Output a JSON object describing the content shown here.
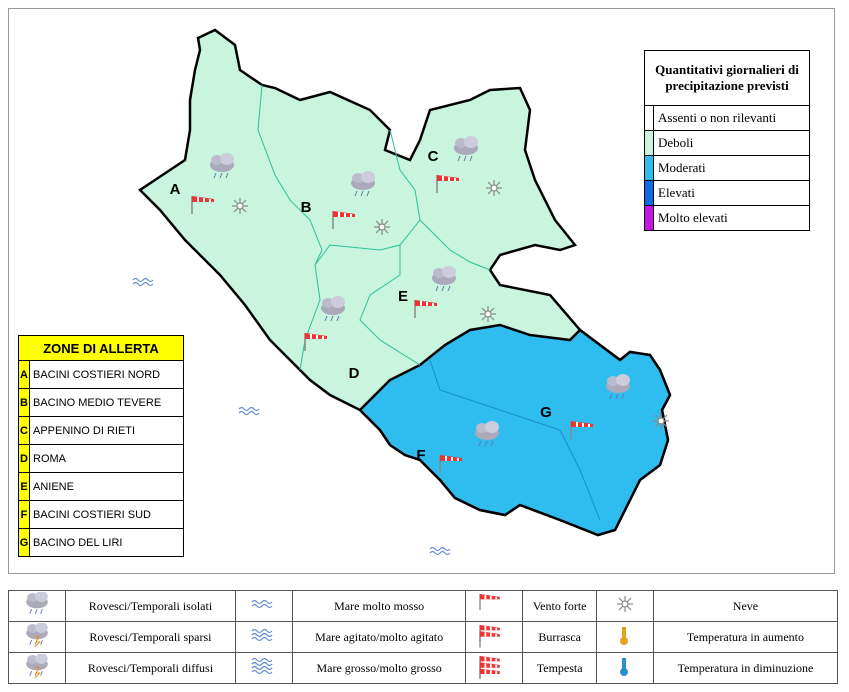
{
  "map": {
    "zone_labels": [
      "A",
      "B",
      "C",
      "D",
      "E",
      "F",
      "G"
    ]
  },
  "precipitation_legend": {
    "title": "Quantitativi giornalieri di precipitazione previsti",
    "rows": [
      {
        "label": "Assenti o non rilevanti",
        "color": "#ffffff"
      },
      {
        "label": "Deboli",
        "color": "#c9f4de"
      },
      {
        "label": "Moderati",
        "color": "#2fbdf0"
      },
      {
        "label": "Elevati",
        "color": "#0a6ee8"
      },
      {
        "label": "Molto elevati",
        "color": "#c814e8"
      }
    ]
  },
  "alert_zones": {
    "title": "ZONE DI ALLERTA",
    "rows": [
      {
        "code": "A",
        "name": "BACINI COSTIERI NORD"
      },
      {
        "code": "B",
        "name": "BACINO MEDIO TEVERE"
      },
      {
        "code": "C",
        "name": "APPENINO DI RIETI"
      },
      {
        "code": "D",
        "name": "ROMA"
      },
      {
        "code": "E",
        "name": "ANIENE"
      },
      {
        "code": "F",
        "name": "BACINI COSTIERI SUD"
      },
      {
        "code": "G",
        "name": "BACINO DEL LIRI"
      }
    ]
  },
  "symbol_legend": {
    "rows": [
      [
        "Rovesci/Temporali isolati",
        "Mare molto mosso",
        "Vento forte",
        "Neve"
      ],
      [
        "Rovesci/Temporali sparsi",
        "Mare agitato/molto agitato",
        "Burrasca",
        "Temperatura in aumento"
      ],
      [
        "Rovesci/Temporali diffusi",
        "Mare grosso/molto grosso",
        "Tempesta",
        "Temperatura in diminuzione"
      ]
    ]
  }
}
